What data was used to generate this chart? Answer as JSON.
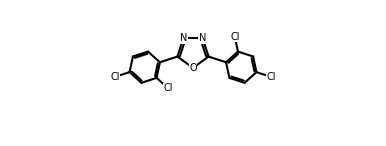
{
  "background_color": "#ffffff",
  "line_color": "#000000",
  "line_width": 1.5,
  "font_size_atom": 7.0,
  "xlim": [
    -5.5,
    5.5
  ],
  "ylim": [
    -4.0,
    3.0
  ]
}
